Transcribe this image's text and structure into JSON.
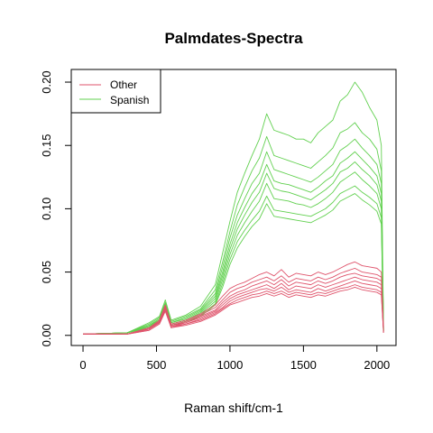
{
  "chart_data": {
    "type": "line",
    "title": "Palmdates-Spectra",
    "xlabel": "Raman shift/cm-1",
    "ylabel": "",
    "xlim": [
      -80,
      2130
    ],
    "ylim": [
      -0.008,
      0.21
    ],
    "xticks": [
      0,
      500,
      1000,
      1500,
      2000
    ],
    "yticks": [
      0.0,
      0.05,
      0.1,
      0.15,
      0.2
    ],
    "ytick_labels": [
      "0.00",
      "0.05",
      "0.10",
      "0.15",
      "0.20"
    ],
    "legend_position": "top-left",
    "colors": {
      "Other": "#DF536B",
      "Spanish": "#61D04F"
    },
    "series": [
      {
        "name": "Spanish",
        "color": "#61D04F",
        "x": [
          0,
          300,
          450,
          520,
          560,
          600,
          700,
          800,
          900,
          950,
          1000,
          1050,
          1100,
          1150,
          1200,
          1250,
          1300,
          1350,
          1400,
          1450,
          1500,
          1550,
          1600,
          1650,
          1700,
          1750,
          1800,
          1850,
          1900,
          1950,
          2000,
          2030,
          2045
        ],
        "values": [
          0.001,
          0.002,
          0.01,
          0.015,
          0.028,
          0.012,
          0.016,
          0.023,
          0.04,
          0.065,
          0.09,
          0.113,
          0.128,
          0.142,
          0.155,
          0.175,
          0.162,
          0.16,
          0.158,
          0.155,
          0.155,
          0.152,
          0.16,
          0.165,
          0.17,
          0.185,
          0.19,
          0.2,
          0.192,
          0.18,
          0.17,
          0.15,
          0.005
        ]
      },
      {
        "name": "Spanish",
        "color": "#61D04F",
        "x": [
          0,
          300,
          450,
          520,
          560,
          600,
          700,
          800,
          900,
          950,
          1000,
          1050,
          1100,
          1150,
          1200,
          1250,
          1300,
          1350,
          1400,
          1450,
          1500,
          1550,
          1600,
          1650,
          1700,
          1750,
          1800,
          1850,
          1900,
          1950,
          2000,
          2030,
          2045
        ],
        "values": [
          0.001,
          0.002,
          0.009,
          0.014,
          0.026,
          0.011,
          0.015,
          0.021,
          0.036,
          0.058,
          0.082,
          0.103,
          0.117,
          0.13,
          0.14,
          0.157,
          0.142,
          0.14,
          0.138,
          0.136,
          0.134,
          0.132,
          0.137,
          0.142,
          0.148,
          0.16,
          0.163,
          0.168,
          0.16,
          0.155,
          0.147,
          0.13,
          0.004
        ]
      },
      {
        "name": "Spanish",
        "color": "#61D04F",
        "x": [
          0,
          300,
          450,
          520,
          560,
          600,
          700,
          800,
          900,
          950,
          1000,
          1050,
          1100,
          1150,
          1200,
          1250,
          1300,
          1350,
          1400,
          1450,
          1500,
          1550,
          1600,
          1650,
          1700,
          1750,
          1800,
          1850,
          1900,
          1950,
          2000,
          2030,
          2045
        ],
        "values": [
          0.001,
          0.002,
          0.008,
          0.013,
          0.025,
          0.01,
          0.014,
          0.02,
          0.033,
          0.054,
          0.077,
          0.095,
          0.108,
          0.12,
          0.128,
          0.145,
          0.131,
          0.129,
          0.127,
          0.125,
          0.123,
          0.121,
          0.125,
          0.13,
          0.135,
          0.146,
          0.15,
          0.155,
          0.148,
          0.142,
          0.135,
          0.12,
          0.004
        ]
      },
      {
        "name": "Spanish",
        "color": "#61D04F",
        "x": [
          0,
          300,
          450,
          520,
          560,
          600,
          700,
          800,
          900,
          950,
          1000,
          1050,
          1100,
          1150,
          1200,
          1250,
          1300,
          1350,
          1400,
          1450,
          1500,
          1550,
          1600,
          1650,
          1700,
          1750,
          1800,
          1850,
          1900,
          1950,
          2000,
          2030,
          2045
        ],
        "values": [
          0.001,
          0.002,
          0.008,
          0.012,
          0.024,
          0.01,
          0.013,
          0.019,
          0.031,
          0.05,
          0.072,
          0.089,
          0.101,
          0.112,
          0.12,
          0.135,
          0.122,
          0.12,
          0.119,
          0.117,
          0.115,
          0.113,
          0.117,
          0.122,
          0.126,
          0.136,
          0.14,
          0.145,
          0.139,
          0.133,
          0.126,
          0.112,
          0.004
        ]
      },
      {
        "name": "Spanish",
        "color": "#61D04F",
        "x": [
          0,
          300,
          450,
          520,
          560,
          600,
          700,
          800,
          900,
          950,
          1000,
          1050,
          1100,
          1150,
          1200,
          1250,
          1300,
          1350,
          1400,
          1450,
          1500,
          1550,
          1600,
          1650,
          1700,
          1750,
          1800,
          1850,
          1900,
          1950,
          2000,
          2030,
          2045
        ],
        "values": [
          0.001,
          0.002,
          0.007,
          0.012,
          0.023,
          0.009,
          0.012,
          0.018,
          0.029,
          0.047,
          0.068,
          0.084,
          0.095,
          0.105,
          0.113,
          0.128,
          0.116,
          0.114,
          0.113,
          0.111,
          0.109,
          0.107,
          0.111,
          0.115,
          0.12,
          0.129,
          0.132,
          0.137,
          0.131,
          0.126,
          0.119,
          0.106,
          0.004
        ]
      },
      {
        "name": "Spanish",
        "color": "#61D04F",
        "x": [
          0,
          300,
          450,
          520,
          560,
          600,
          700,
          800,
          900,
          950,
          1000,
          1050,
          1100,
          1150,
          1200,
          1250,
          1300,
          1350,
          1400,
          1450,
          1500,
          1550,
          1600,
          1650,
          1700,
          1750,
          1800,
          1850,
          1900,
          1950,
          2000,
          2030,
          2045
        ],
        "values": [
          0.001,
          0.002,
          0.007,
          0.011,
          0.022,
          0.009,
          0.012,
          0.017,
          0.027,
          0.044,
          0.064,
          0.079,
          0.089,
          0.098,
          0.106,
          0.12,
          0.108,
          0.107,
          0.106,
          0.104,
          0.103,
          0.101,
          0.104,
          0.108,
          0.113,
          0.121,
          0.125,
          0.129,
          0.123,
          0.118,
          0.112,
          0.1,
          0.004
        ]
      },
      {
        "name": "Spanish",
        "color": "#61D04F",
        "x": [
          0,
          300,
          450,
          520,
          560,
          600,
          700,
          800,
          900,
          950,
          1000,
          1050,
          1100,
          1150,
          1200,
          1250,
          1300,
          1350,
          1400,
          1450,
          1500,
          1550,
          1600,
          1650,
          1700,
          1750,
          1800,
          1850,
          1900,
          1950,
          2000,
          2030,
          2045
        ],
        "values": [
          0.001,
          0.002,
          0.006,
          0.01,
          0.021,
          0.008,
          0.011,
          0.016,
          0.025,
          0.041,
          0.06,
          0.074,
          0.083,
          0.091,
          0.098,
          0.11,
          0.099,
          0.098,
          0.097,
          0.096,
          0.095,
          0.094,
          0.097,
          0.1,
          0.105,
          0.112,
          0.115,
          0.118,
          0.113,
          0.109,
          0.104,
          0.093,
          0.003
        ]
      },
      {
        "name": "Spanish",
        "color": "#61D04F",
        "x": [
          0,
          300,
          450,
          520,
          560,
          600,
          700,
          800,
          900,
          950,
          1000,
          1050,
          1100,
          1150,
          1200,
          1250,
          1300,
          1350,
          1400,
          1450,
          1500,
          1550,
          1600,
          1650,
          1700,
          1750,
          1800,
          1850,
          1900,
          1950,
          2000,
          2030,
          2045
        ],
        "values": [
          0.001,
          0.002,
          0.006,
          0.01,
          0.02,
          0.008,
          0.011,
          0.015,
          0.024,
          0.038,
          0.056,
          0.069,
          0.078,
          0.086,
          0.092,
          0.104,
          0.094,
          0.093,
          0.092,
          0.091,
          0.09,
          0.089,
          0.092,
          0.095,
          0.099,
          0.106,
          0.109,
          0.112,
          0.107,
          0.103,
          0.098,
          0.088,
          0.003
        ]
      },
      {
        "name": "Other",
        "color": "#DF536B",
        "x": [
          0,
          300,
          450,
          520,
          560,
          600,
          700,
          800,
          900,
          950,
          1000,
          1050,
          1100,
          1150,
          1200,
          1250,
          1300,
          1350,
          1400,
          1450,
          1500,
          1550,
          1600,
          1650,
          1700,
          1750,
          1800,
          1850,
          1900,
          1950,
          2000,
          2030,
          2045
        ],
        "values": [
          0.001,
          0.001,
          0.006,
          0.012,
          0.024,
          0.009,
          0.012,
          0.017,
          0.024,
          0.031,
          0.037,
          0.04,
          0.042,
          0.045,
          0.048,
          0.05,
          0.047,
          0.052,
          0.046,
          0.049,
          0.048,
          0.047,
          0.05,
          0.048,
          0.05,
          0.053,
          0.056,
          0.058,
          0.055,
          0.054,
          0.053,
          0.05,
          0.003
        ]
      },
      {
        "name": "Other",
        "color": "#DF536B",
        "x": [
          0,
          300,
          450,
          520,
          560,
          600,
          700,
          800,
          900,
          950,
          1000,
          1050,
          1100,
          1150,
          1200,
          1250,
          1300,
          1350,
          1400,
          1450,
          1500,
          1550,
          1600,
          1650,
          1700,
          1750,
          1800,
          1850,
          1900,
          1950,
          2000,
          2030,
          2045
        ],
        "values": [
          0.001,
          0.001,
          0.006,
          0.011,
          0.023,
          0.008,
          0.011,
          0.016,
          0.022,
          0.028,
          0.034,
          0.037,
          0.039,
          0.042,
          0.044,
          0.046,
          0.043,
          0.047,
          0.042,
          0.045,
          0.044,
          0.043,
          0.046,
          0.044,
          0.046,
          0.049,
          0.051,
          0.053,
          0.05,
          0.049,
          0.048,
          0.046,
          0.003
        ]
      },
      {
        "name": "Other",
        "color": "#DF536B",
        "x": [
          0,
          300,
          450,
          520,
          560,
          600,
          700,
          800,
          900,
          950,
          1000,
          1050,
          1100,
          1150,
          1200,
          1250,
          1300,
          1350,
          1400,
          1450,
          1500,
          1550,
          1600,
          1650,
          1700,
          1750,
          1800,
          1850,
          1900,
          1950,
          2000,
          2030,
          2045
        ],
        "values": [
          0.001,
          0.001,
          0.005,
          0.011,
          0.022,
          0.008,
          0.01,
          0.015,
          0.02,
          0.026,
          0.031,
          0.034,
          0.036,
          0.039,
          0.041,
          0.043,
          0.04,
          0.044,
          0.039,
          0.042,
          0.041,
          0.04,
          0.043,
          0.041,
          0.043,
          0.046,
          0.048,
          0.049,
          0.047,
          0.046,
          0.045,
          0.043,
          0.003
        ]
      },
      {
        "name": "Other",
        "color": "#DF536B",
        "x": [
          0,
          300,
          450,
          520,
          560,
          600,
          700,
          800,
          900,
          950,
          1000,
          1050,
          1100,
          1150,
          1200,
          1250,
          1300,
          1350,
          1400,
          1450,
          1500,
          1550,
          1600,
          1650,
          1700,
          1750,
          1800,
          1850,
          1900,
          1950,
          2000,
          2030,
          2045
        ],
        "values": [
          0.001,
          0.001,
          0.005,
          0.01,
          0.021,
          0.007,
          0.01,
          0.014,
          0.019,
          0.024,
          0.029,
          0.032,
          0.034,
          0.036,
          0.038,
          0.04,
          0.037,
          0.041,
          0.036,
          0.039,
          0.038,
          0.037,
          0.04,
          0.038,
          0.04,
          0.042,
          0.044,
          0.046,
          0.044,
          0.043,
          0.042,
          0.04,
          0.003
        ]
      },
      {
        "name": "Other",
        "color": "#DF536B",
        "x": [
          0,
          300,
          450,
          520,
          560,
          600,
          700,
          800,
          900,
          950,
          1000,
          1050,
          1100,
          1150,
          1200,
          1250,
          1300,
          1350,
          1400,
          1450,
          1500,
          1550,
          1600,
          1650,
          1700,
          1750,
          1800,
          1850,
          1900,
          1950,
          2000,
          2030,
          2045
        ],
        "values": [
          0.001,
          0.001,
          0.005,
          0.01,
          0.02,
          0.007,
          0.009,
          0.013,
          0.018,
          0.022,
          0.027,
          0.03,
          0.032,
          0.034,
          0.036,
          0.037,
          0.035,
          0.038,
          0.034,
          0.036,
          0.035,
          0.034,
          0.037,
          0.035,
          0.037,
          0.039,
          0.041,
          0.043,
          0.041,
          0.04,
          0.039,
          0.037,
          0.003
        ]
      },
      {
        "name": "Other",
        "color": "#DF536B",
        "x": [
          0,
          300,
          450,
          520,
          560,
          600,
          700,
          800,
          900,
          950,
          1000,
          1050,
          1100,
          1150,
          1200,
          1250,
          1300,
          1350,
          1400,
          1450,
          1500,
          1550,
          1600,
          1650,
          1700,
          1750,
          1800,
          1850,
          1900,
          1950,
          2000,
          2030,
          2045
        ],
        "values": [
          0.001,
          0.001,
          0.004,
          0.009,
          0.02,
          0.006,
          0.009,
          0.012,
          0.017,
          0.021,
          0.025,
          0.028,
          0.03,
          0.032,
          0.033,
          0.035,
          0.033,
          0.035,
          0.032,
          0.034,
          0.033,
          0.032,
          0.034,
          0.033,
          0.035,
          0.037,
          0.038,
          0.04,
          0.038,
          0.037,
          0.036,
          0.034,
          0.002
        ]
      },
      {
        "name": "Other",
        "color": "#DF536B",
        "x": [
          0,
          300,
          450,
          520,
          560,
          600,
          700,
          800,
          900,
          950,
          1000,
          1050,
          1100,
          1150,
          1200,
          1250,
          1300,
          1350,
          1400,
          1450,
          1500,
          1550,
          1600,
          1650,
          1700,
          1750,
          1800,
          1850,
          1900,
          1950,
          2000,
          2030,
          2045
        ],
        "values": [
          0.001,
          0.001,
          0.004,
          0.009,
          0.019,
          0.006,
          0.008,
          0.011,
          0.016,
          0.02,
          0.024,
          0.026,
          0.028,
          0.03,
          0.031,
          0.033,
          0.031,
          0.033,
          0.03,
          0.032,
          0.031,
          0.03,
          0.032,
          0.031,
          0.033,
          0.035,
          0.036,
          0.038,
          0.036,
          0.035,
          0.034,
          0.032,
          0.002
        ]
      }
    ],
    "legend": [
      {
        "label": "Other",
        "color": "#DF536B"
      },
      {
        "label": "Spanish",
        "color": "#61D04F"
      }
    ]
  }
}
